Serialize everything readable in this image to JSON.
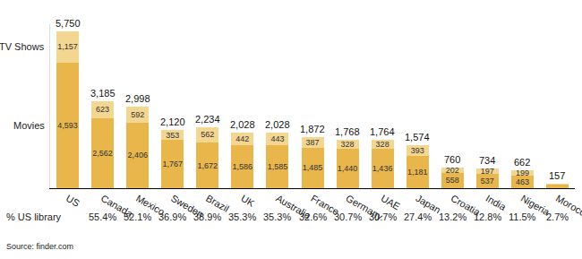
{
  "chart_data": {
    "type": "bar",
    "stacked": true,
    "data_labels": true,
    "tick_labels": "x",
    "grid": false,
    "categories": [
      "US",
      "Canada",
      "Mexico",
      "Sweden",
      "Brazil",
      "UK",
      "Australia",
      "France",
      "Germany",
      "UAE",
      "Japan",
      "Croatia",
      "India",
      "Nigeria",
      "Morocco"
    ],
    "series": [
      {
        "name": "Movies",
        "color": "#e8b64b",
        "values": [
          4593,
          2562,
          2406,
          1767,
          1672,
          1586,
          1585,
          1485,
          1440,
          1436,
          1181,
          558,
          537,
          463,
          130
        ],
        "value_labels": [
          "4,593",
          "2,562",
          "2,406",
          "1,767",
          "1,672",
          "1,586",
          "1,585",
          "1,485",
          "1,440",
          "1,436",
          "1,181",
          "558",
          "537",
          "463",
          null
        ]
      },
      {
        "name": "TV Shows",
        "color": "#f3d68f",
        "values": [
          1157,
          623,
          592,
          353,
          562,
          442,
          443,
          387,
          328,
          328,
          393,
          202,
          197,
          199,
          27
        ],
        "value_labels": [
          "1,157",
          "623",
          "592",
          "353",
          "562",
          "442",
          "443",
          "387",
          "328",
          "328",
          "393",
          "202",
          "197",
          "199",
          null
        ]
      }
    ],
    "totals": [
      5750,
      3185,
      2998,
      2120,
      2234,
      2028,
      2028,
      1872,
      1768,
      1764,
      1574,
      760,
      734,
      662,
      157
    ],
    "total_labels": [
      "5,750",
      "3,185",
      "2,998",
      "2,120",
      "2,234",
      "2,028",
      "2,028",
      "1,872",
      "1,768",
      "1,764",
      "1,574",
      "760",
      "734",
      "662",
      "157"
    ],
    "ylim": [
      0,
      6000
    ],
    "pct_title": "% US library",
    "pct_us_library": [
      null,
      55.4,
      52.1,
      36.9,
      38.9,
      35.3,
      35.3,
      32.6,
      30.7,
      30.7,
      27.4,
      13.2,
      12.8,
      11.5,
      2.7
    ],
    "pct_us_library_labels": [
      null,
      "55.4%",
      "52.1%",
      "36.9%",
      "38.9%",
      "35.3%",
      "35.3%",
      "32.6%",
      "30.7%",
      "30.7%",
      "27.4%",
      "13.2%",
      "12.8%",
      "11.5%",
      "2.7%"
    ],
    "source": "Source: finder.com"
  }
}
